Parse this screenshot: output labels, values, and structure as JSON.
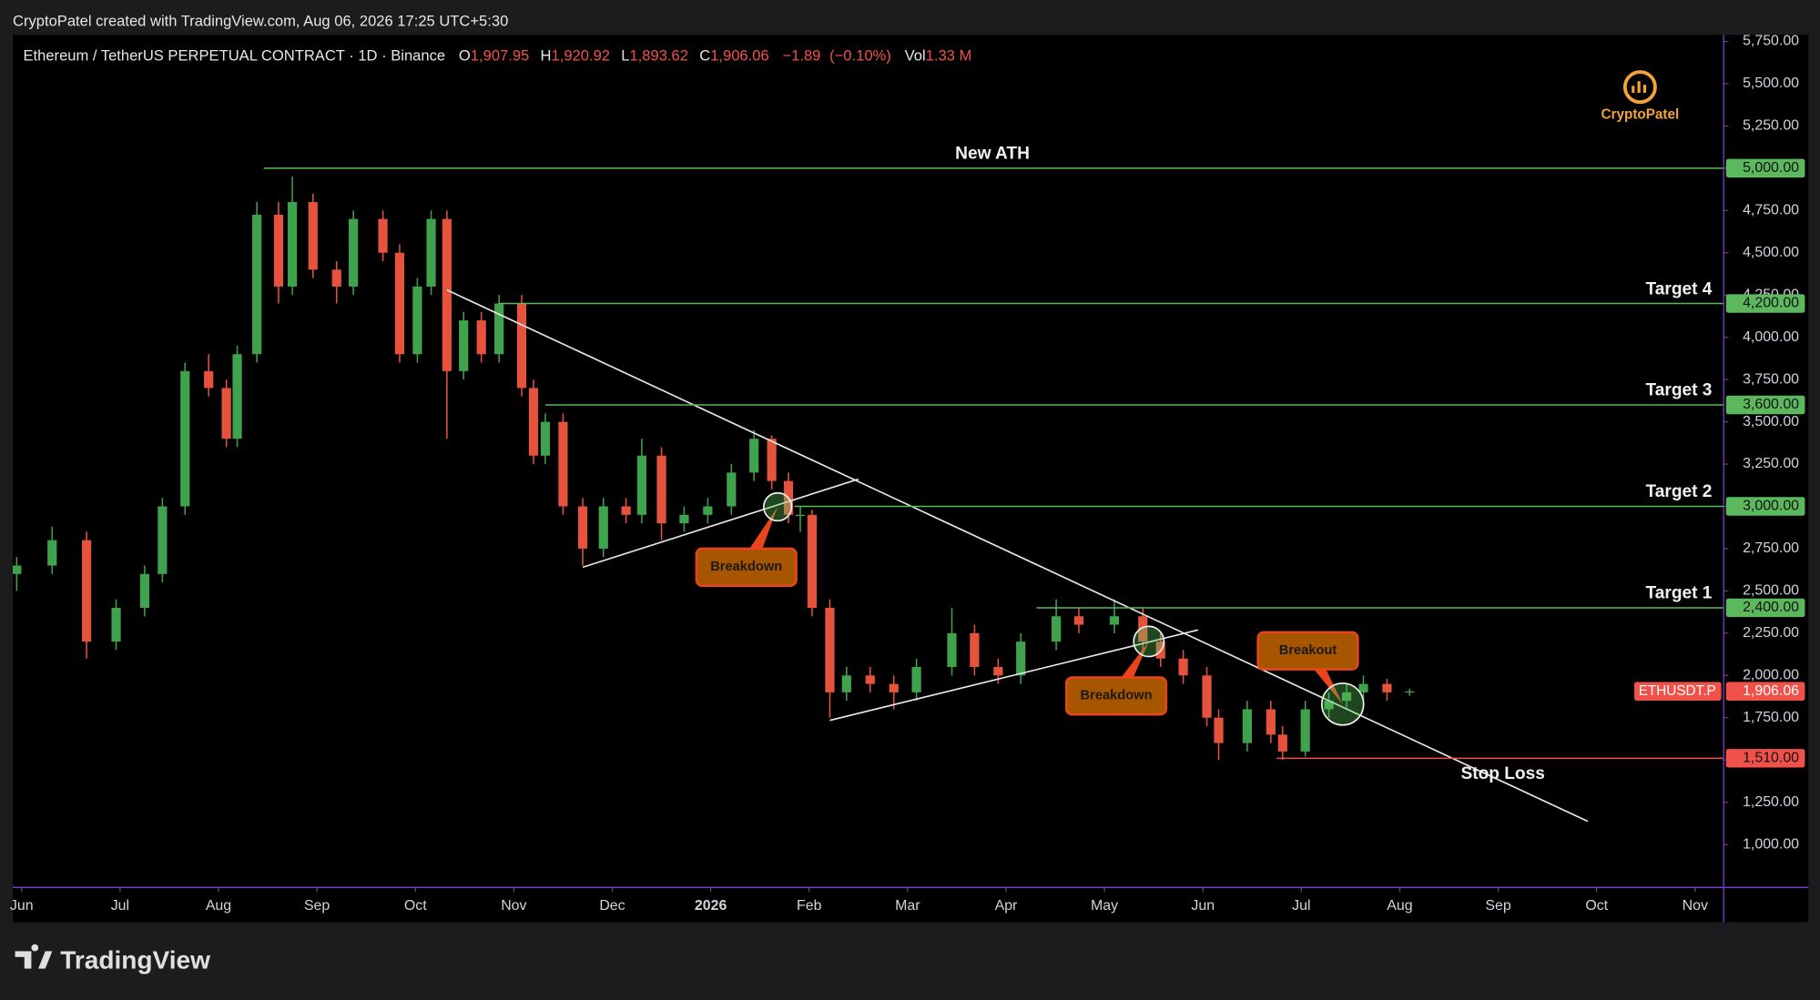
{
  "watermark_header": "CryptoPatel created with TradingView.com, Aug 06, 2026 17:25 UTC+5:30",
  "footer_brand": "TradingView",
  "logo_text": "CryptoPatel",
  "chart_data": {
    "type": "candlestick",
    "title": "Ethereum / TetherUS PERPETUAL CONTRACT · 1D · Binance",
    "ohlc_header": {
      "o_prefix": "O",
      "open": {
        "value": 1907.95,
        "label": "1,907.95"
      },
      "h_prefix": "H",
      "high": {
        "value": 1920.92,
        "label": "1,920.92"
      },
      "l_prefix": "L",
      "low": {
        "value": 1893.62,
        "label": "1,893.62"
      },
      "c_prefix": "C",
      "close": {
        "value": 1906.06,
        "label": "1,906.06"
      },
      "change": {
        "value": -1.89,
        "label": "−1.89"
      },
      "change_pct": {
        "value": -0.1,
        "label": "(−0.10%)"
      },
      "vol_prefix": "Vol",
      "volume": {
        "value": 1.33,
        "label": "1.33 M"
      }
    },
    "up_color": "#3fa34d",
    "down_color": "#e5533d",
    "x": [
      -0.05,
      0.31,
      0.66,
      0.96,
      1.25,
      1.43,
      1.66,
      1.9,
      2.08,
      2.19,
      2.39,
      2.61,
      2.75,
      2.96,
      3.2,
      3.37,
      3.67,
      3.84,
      4.02,
      4.16,
      4.32,
      4.49,
      4.67,
      4.85,
      5.08,
      5.2,
      5.32,
      5.5,
      5.7,
      5.91,
      6.14,
      6.3,
      6.5,
      6.73,
      6.97,
      7.21,
      7.44,
      7.62,
      7.79,
      7.91,
      8.03,
      8.21,
      8.38,
      8.62,
      8.86,
      9.09,
      9.45,
      9.68,
      9.92,
      10.15,
      10.51,
      10.74,
      11.1,
      11.39,
      11.57,
      11.8,
      12.04,
      12.16,
      12.45,
      12.69,
      12.81,
      13.04,
      13.28,
      13.46,
      13.63,
      13.87,
      14.1
    ],
    "open": [
      2600,
      2650,
      2800,
      2200,
      2400,
      2600,
      3000,
      3800,
      3700,
      3400,
      3900,
      4725,
      4300,
      4800,
      4400,
      4300,
      4700,
      4500,
      3900,
      4300,
      4700,
      3800,
      4100,
      3900,
      4200,
      3700,
      3300,
      3500,
      3000,
      2750,
      3000,
      2950,
      3300,
      2900,
      2950,
      3000,
      3200,
      3400,
      3150,
      2950,
      2950,
      2400,
      1900,
      2000,
      1950,
      1900,
      2050,
      2250,
      2050,
      2000,
      2200,
      2350,
      2300,
      2350,
      2200,
      2100,
      2000,
      1750,
      1600,
      1800,
      1650,
      1550,
      1800,
      1850,
      1900,
      1950,
      1900
    ],
    "high": [
      2700,
      2880,
      2850,
      2450,
      2650,
      3050,
      3850,
      3900,
      3750,
      3950,
      4800,
      4800,
      4950,
      4850,
      4450,
      4750,
      4750,
      4550,
      4350,
      4750,
      4750,
      4150,
      4150,
      4250,
      4250,
      3750,
      3550,
      3550,
      3050,
      3050,
      3050,
      3400,
      3350,
      3000,
      3050,
      3250,
      3450,
      3420,
      3200,
      3000,
      2980,
      2450,
      2050,
      2050,
      2000,
      2100,
      2400,
      2300,
      2100,
      2250,
      2450,
      2400,
      2450,
      2400,
      2250,
      2150,
      2050,
      1800,
      1850,
      1850,
      1700,
      1850,
      1900,
      1950,
      2000,
      1980,
      1921
    ],
    "low": [
      2500,
      2600,
      2100,
      2150,
      2350,
      2550,
      2950,
      3650,
      3350,
      3350,
      3850,
      4200,
      4250,
      4350,
      4200,
      4250,
      4450,
      3850,
      3850,
      4250,
      3400,
      3750,
      3850,
      3850,
      3650,
      3250,
      3250,
      2950,
      2650,
      2700,
      2900,
      2900,
      2800,
      2850,
      2900,
      2950,
      3150,
      3100,
      2900,
      2850,
      2350,
      1750,
      1850,
      1900,
      1800,
      1850,
      2000,
      2000,
      1950,
      1950,
      2150,
      2250,
      2250,
      2150,
      2050,
      1950,
      1700,
      1500,
      1550,
      1600,
      1500,
      1520,
      1750,
      1800,
      1850,
      1850,
      1880
    ],
    "close": [
      2650,
      2800,
      2200,
      2400,
      2600,
      3000,
      3800,
      3700,
      3400,
      3900,
      4725,
      4300,
      4800,
      4400,
      4300,
      4700,
      4500,
      3900,
      4300,
      4700,
      3800,
      4100,
      3900,
      4200,
      3700,
      3300,
      3500,
      3000,
      2750,
      3000,
      2950,
      3300,
      2900,
      2950,
      3000,
      3200,
      3400,
      3150,
      2950,
      2950,
      2400,
      1900,
      2000,
      1950,
      1900,
      2050,
      2250,
      2050,
      2000,
      2200,
      2350,
      2300,
      2350,
      2200,
      2100,
      2000,
      1750,
      1600,
      1800,
      1650,
      1550,
      1800,
      1850,
      1900,
      1950,
      1900,
      1906
    ],
    "xlim": [
      -0.09,
      17.29
    ],
    "ylim": [
      746,
      5789
    ],
    "xticks": [
      {
        "value": 0,
        "label": "Jun"
      },
      {
        "value": 1,
        "label": "Jul"
      },
      {
        "value": 2,
        "label": "Aug"
      },
      {
        "value": 3,
        "label": "Sep"
      },
      {
        "value": 4,
        "label": "Oct"
      },
      {
        "value": 5,
        "label": "Nov"
      },
      {
        "value": 6,
        "label": "Dec"
      },
      {
        "value": 7,
        "label": "2026"
      },
      {
        "value": 8,
        "label": "Feb"
      },
      {
        "value": 9,
        "label": "Mar"
      },
      {
        "value": 10,
        "label": "Apr"
      },
      {
        "value": 11,
        "label": "May"
      },
      {
        "value": 12,
        "label": "Jun"
      },
      {
        "value": 13,
        "label": "Jul"
      },
      {
        "value": 14,
        "label": "Aug"
      },
      {
        "value": 15,
        "label": "Sep"
      },
      {
        "value": 16,
        "label": "Oct"
      },
      {
        "value": 17,
        "label": "Nov"
      }
    ],
    "yticks": [
      {
        "value": 1000,
        "label": "1,000.00"
      },
      {
        "value": 1250,
        "label": "1,250.00"
      },
      {
        "value": 1500,
        "label": "1,500.00"
      },
      {
        "value": 1750,
        "label": "1,750.00"
      },
      {
        "value": 2000,
        "label": "2,000.00"
      },
      {
        "value": 2250,
        "label": "2,250.00"
      },
      {
        "value": 2500,
        "label": "2,500.00"
      },
      {
        "value": 2750,
        "label": "2,750.00"
      },
      {
        "value": 3000,
        "label": "3,000.00"
      },
      {
        "value": 3250,
        "label": "3,250.00"
      },
      {
        "value": 3500,
        "label": "3,500.00"
      },
      {
        "value": 3750,
        "label": "3,750.00"
      },
      {
        "value": 4000,
        "label": "4,000.00"
      },
      {
        "value": 4250,
        "label": "4,250.00"
      },
      {
        "value": 4500,
        "label": "4,500.00"
      },
      {
        "value": 4750,
        "label": "4,750.00"
      },
      {
        "value": 5000,
        "label": "5,000.00"
      },
      {
        "value": 5250,
        "label": "5,250.00"
      },
      {
        "value": 5500,
        "label": "5,500.00"
      },
      {
        "value": 5750,
        "label": "5,750.00"
      }
    ],
    "levels": [
      {
        "name": "New ATH",
        "price": {
          "value": 5000,
          "label": "5,000.00"
        },
        "x_start": 2.46,
        "color": "#5cb85c"
      },
      {
        "name": "Target 4",
        "price": {
          "value": 4200,
          "label": "4,200.00"
        },
        "x_start": 4.85,
        "color": "#5cb85c"
      },
      {
        "name": "Target 3",
        "price": {
          "value": 3600,
          "label": "3,600.00"
        },
        "x_start": 5.32,
        "color": "#5cb85c"
      },
      {
        "name": "Target 2",
        "price": {
          "value": 3000,
          "label": "3,000.00"
        },
        "x_start": 7.85,
        "color": "#5cb85c"
      },
      {
        "name": "Target 1",
        "price": {
          "value": 2400,
          "label": "2,400.00"
        },
        "x_start": 10.31,
        "color": "#5cb85c"
      },
      {
        "name": "Stop Loss",
        "price": {
          "value": 1510,
          "label": "1,510.00"
        },
        "x_start": 12.75,
        "color": "#f0524a"
      }
    ],
    "current_price": {
      "symbol": "ETHUSDT.P",
      "price": {
        "value": 1906.06,
        "label": "1,906.06"
      },
      "color": "#f0524a"
    },
    "trendlines": [
      {
        "x": [
          4.32,
          15.91
        ],
        "y": [
          4280,
          1137
        ]
      },
      {
        "x": [
          5.7,
          8.5
        ],
        "y": [
          2640,
          3161
        ]
      },
      {
        "x": [
          8.21,
          11.95
        ],
        "y": [
          1734,
          2269
        ]
      }
    ],
    "annotations": [
      {
        "text": "Breakdown",
        "x": 7.68,
        "y": 2997
      },
      {
        "text": "Breakdown",
        "x": 11.45,
        "y": 2201
      },
      {
        "text": "Breakout",
        "x": 13.42,
        "y": 1830
      }
    ]
  }
}
